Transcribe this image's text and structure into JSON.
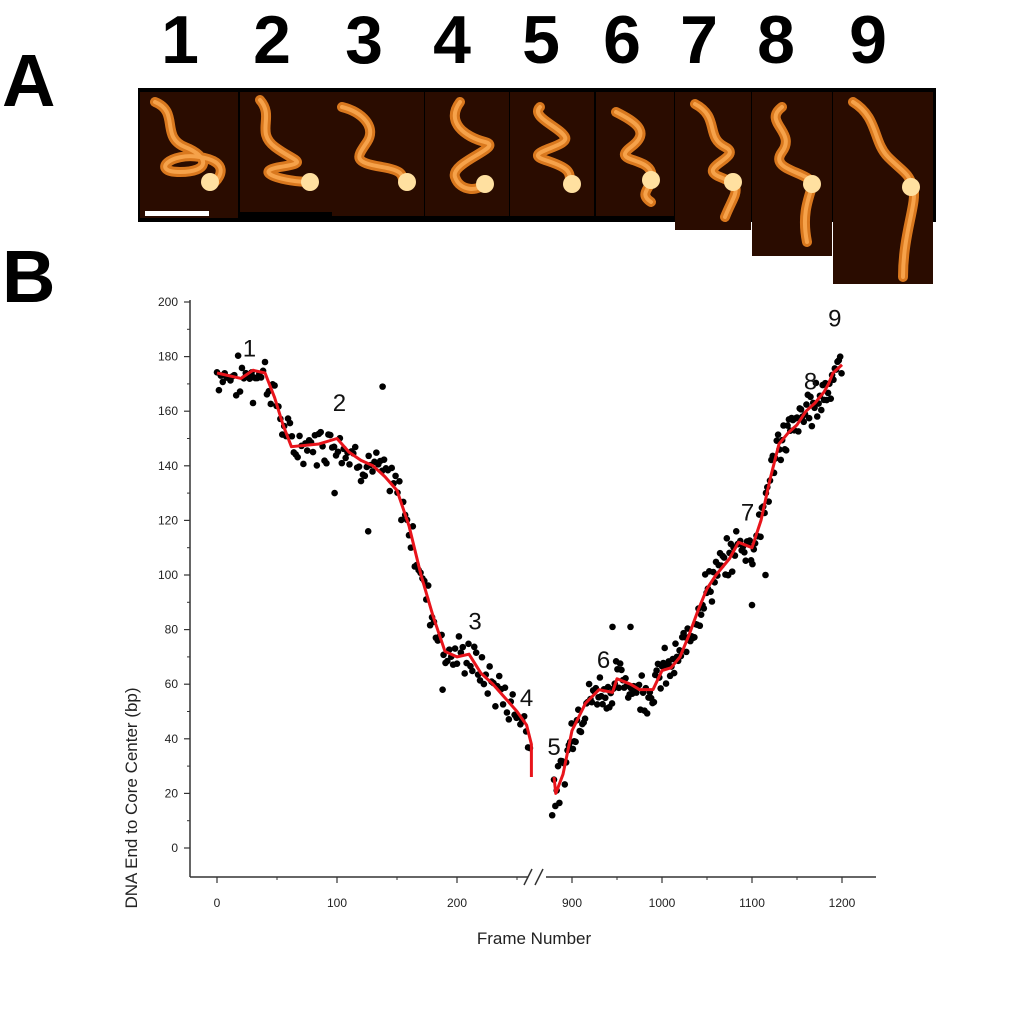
{
  "panels": {
    "a_label": "A",
    "b_label": "B"
  },
  "frames": [
    {
      "number": "1"
    },
    {
      "number": "2"
    },
    {
      "number": "3"
    },
    {
      "number": "4"
    },
    {
      "number": "5"
    },
    {
      "number": "6"
    },
    {
      "number": "7"
    },
    {
      "number": "8"
    },
    {
      "number": "9"
    }
  ],
  "colors": {
    "data_points": "#000000",
    "fit_line": "#e8141b",
    "afm_bright": "#ffe0a0",
    "afm_mid": "#d9781e",
    "afm_dark": "#2a0c00"
  },
  "chart_data": {
    "type": "scatter",
    "xlabel": "Frame Number",
    "ylabel": "DNA End to Core Center (bp)",
    "ylim": [
      -10,
      200
    ],
    "yticks": [
      "0",
      "20",
      "40",
      "60",
      "80",
      "100",
      "120",
      "140",
      "160",
      "180",
      "200"
    ],
    "axis_break": "between 260 and 880",
    "xticks": [
      "0",
      "100",
      "200",
      "900",
      "1000",
      "1100",
      "1200"
    ],
    "annotations": [
      {
        "text": "1",
        "x": 27,
        "y": 180
      },
      {
        "text": "2",
        "x": 102,
        "y": 160
      },
      {
        "text": "3",
        "x": 215,
        "y": 80
      },
      {
        "text": "4",
        "x": 258,
        "y": 52
      },
      {
        "text": "5",
        "x": 880,
        "y": 34
      },
      {
        "text": "6",
        "x": 935,
        "y": 66
      },
      {
        "text": "7",
        "x": 1095,
        "y": 120
      },
      {
        "text": "8",
        "x": 1165,
        "y": 168
      },
      {
        "text": "9",
        "x": 1192,
        "y": 191
      }
    ],
    "series": [
      {
        "type": "step-line",
        "x": [
          0,
          20,
          30,
          40,
          48,
          55,
          62,
          85,
          100,
          110,
          120,
          130,
          140,
          150,
          160,
          170,
          180,
          190,
          200,
          210,
          220,
          230,
          240,
          250,
          258,
          262,
          262,
          880,
          882,
          890,
          900,
          915,
          930,
          945,
          950,
          965,
          975,
          990,
          1000,
          1010,
          1020,
          1030,
          1040,
          1050,
          1060,
          1075,
          1085,
          1100,
          1110,
          1120,
          1130,
          1140,
          1150,
          1160,
          1170,
          1180,
          1185,
          1190,
          1200
        ],
        "y": [
          174,
          172,
          175,
          174,
          165,
          155,
          147,
          148,
          150,
          145,
          142,
          140,
          136,
          131,
          118,
          100,
          85,
          72,
          70,
          71,
          64,
          60,
          55,
          50,
          45,
          38,
          26,
          26,
          20,
          27,
          43,
          53,
          58,
          57,
          62,
          60,
          58,
          58,
          65,
          66,
          70,
          78,
          87,
          95,
          100,
          106,
          112,
          110,
          120,
          135,
          148,
          152,
          155,
          160,
          163,
          167,
          170,
          174,
          177
        ]
      }
    ]
  }
}
